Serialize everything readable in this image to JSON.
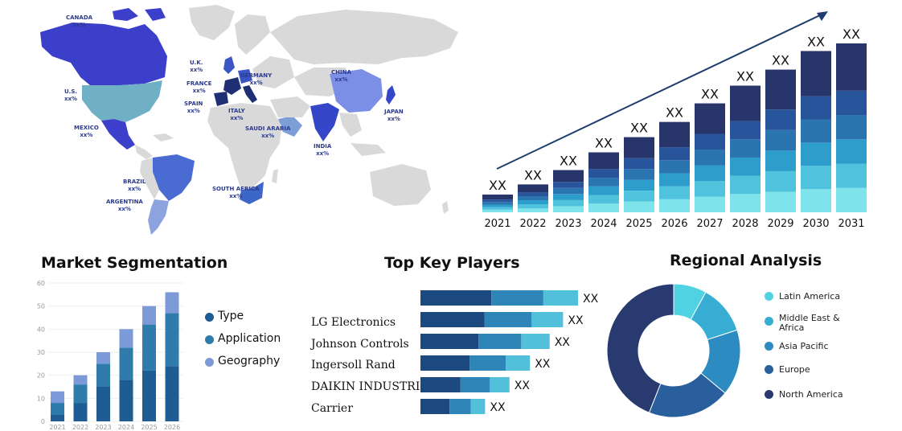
{
  "map": {
    "labels": [
      {
        "id": "canada",
        "name": "CANADA",
        "value": "xx%"
      },
      {
        "id": "us",
        "name": "U.S.",
        "value": "xx%"
      },
      {
        "id": "mexico",
        "name": "MEXICO",
        "value": "xx%"
      },
      {
        "id": "brazil",
        "name": "BRAZIL",
        "value": "xx%"
      },
      {
        "id": "argentina",
        "name": "ARGENTINA",
        "value": "xx%"
      },
      {
        "id": "uk",
        "name": "U.K.",
        "value": "xx%"
      },
      {
        "id": "france",
        "name": "FRANCE",
        "value": "xx%"
      },
      {
        "id": "spain",
        "name": "SPAIN",
        "value": "xx%"
      },
      {
        "id": "germany",
        "name": "GERMANY",
        "value": "xx%"
      },
      {
        "id": "italy",
        "name": "ITALY",
        "value": "xx%"
      },
      {
        "id": "saudi",
        "name": "SAUDI ARABIA",
        "value": "xx%"
      },
      {
        "id": "south_africa",
        "name": "SOUTH AFRICA",
        "value": "xx%"
      },
      {
        "id": "china",
        "name": "CHINA",
        "value": "xx%"
      },
      {
        "id": "india",
        "name": "INDIA",
        "value": "xx%"
      },
      {
        "id": "japan",
        "name": "JAPAN",
        "value": "xx%"
      }
    ],
    "colors": {
      "land": "#d9d9d9",
      "canada": "#3b3fc9",
      "us": "#6fb0c4",
      "mexico": "#3b3fc9",
      "brazil": "#4a6bd1",
      "argentina": "#8da3e0",
      "europe_dark": "#1f2f73",
      "europe_mid": "#3b55c4",
      "saudi": "#7d9fd8",
      "south_africa": "#3c66c7",
      "china": "#7b8fe6",
      "india": "#3646c8",
      "japan": "#3646c8"
    }
  },
  "chart_data": [
    {
      "type": "bar",
      "title": "",
      "stacked": true,
      "categories": [
        "2021",
        "2022",
        "2023",
        "2024",
        "2025",
        "2026",
        "2027",
        "2028",
        "2029",
        "2030",
        "2031"
      ],
      "total_relative": [
        0.105,
        0.165,
        0.25,
        0.355,
        0.445,
        0.535,
        0.645,
        0.75,
        0.845,
        0.955,
        1.0
      ],
      "value_labels": [
        "XX",
        "XX",
        "XX",
        "XX",
        "XX",
        "XX",
        "XX",
        "XX",
        "XX",
        "XX",
        "XX"
      ],
      "segment_colors": [
        "#7fe3ec",
        "#4fc3dd",
        "#2d9ecb",
        "#2a74b0",
        "#27549a",
        "#28356b"
      ],
      "trend_arrow": true
    },
    {
      "type": "bar",
      "title": "Market Segmentation",
      "stacked": true,
      "categories": [
        "2021",
        "2022",
        "2023",
        "2024",
        "2025",
        "2026"
      ],
      "yticks": [
        0,
        10,
        20,
        30,
        40,
        50,
        60
      ],
      "ylim": [
        0,
        60
      ],
      "series": [
        {
          "name": "Type",
          "values": [
            3,
            8,
            15,
            18,
            22,
            24
          ],
          "color": "#1f5c93"
        },
        {
          "name": "Application",
          "values": [
            5,
            8,
            10,
            14,
            20,
            23
          ],
          "color": "#2e7bac"
        },
        {
          "name": "Geography",
          "values": [
            5,
            4,
            5,
            8,
            8,
            9
          ],
          "color": "#7d9ad8"
        }
      ],
      "legend_position": "right"
    },
    {
      "type": "bar",
      "orientation": "horizontal",
      "title": "Top Key Players",
      "categories": [
        "",
        "LG Electronics",
        "Johnson Controls",
        "Ingersoll Rand",
        "DAIKIN INDUSTRIES",
        "Carrier"
      ],
      "value_labels": [
        "XX",
        "XX",
        "XX",
        "XX",
        "XX",
        "XX"
      ],
      "total_relative": [
        1.0,
        0.905,
        0.82,
        0.695,
        0.565,
        0.41
      ],
      "segment_share": [
        0.45,
        0.33,
        0.22
      ],
      "segment_colors": [
        "#1c4a80",
        "#2e86b8",
        "#52c0da"
      ]
    },
    {
      "type": "pie",
      "donut": true,
      "title": "Regional Analysis",
      "labels": [
        "Latin America",
        "Middle East & Africa",
        "Asia Pacific",
        "Europe",
        "North America"
      ],
      "values": [
        8,
        12,
        16,
        20,
        44
      ],
      "colors": [
        "#4fd3e2",
        "#37add4",
        "#2c8bc0",
        "#2a5f9e",
        "#283a6f"
      ],
      "legend_position": "right"
    }
  ],
  "segmentation": {
    "title": "Market Segmentation",
    "legend": [
      "Type",
      "Application",
      "Geography"
    ]
  },
  "players": {
    "title": "Top Key Players",
    "names": [
      "LG Electronics",
      "Johnson Controls",
      "Ingersoll Rand",
      "DAIKIN INDUSTRIES",
      "Carrier"
    ],
    "value_labels": [
      "XX",
      "XX",
      "XX",
      "XX",
      "XX",
      "XX"
    ]
  },
  "regional": {
    "title": "Regional Analysis",
    "legend": [
      "Latin America",
      "Middle East & Africa",
      "Asia Pacific",
      "Europe",
      "North America"
    ]
  }
}
